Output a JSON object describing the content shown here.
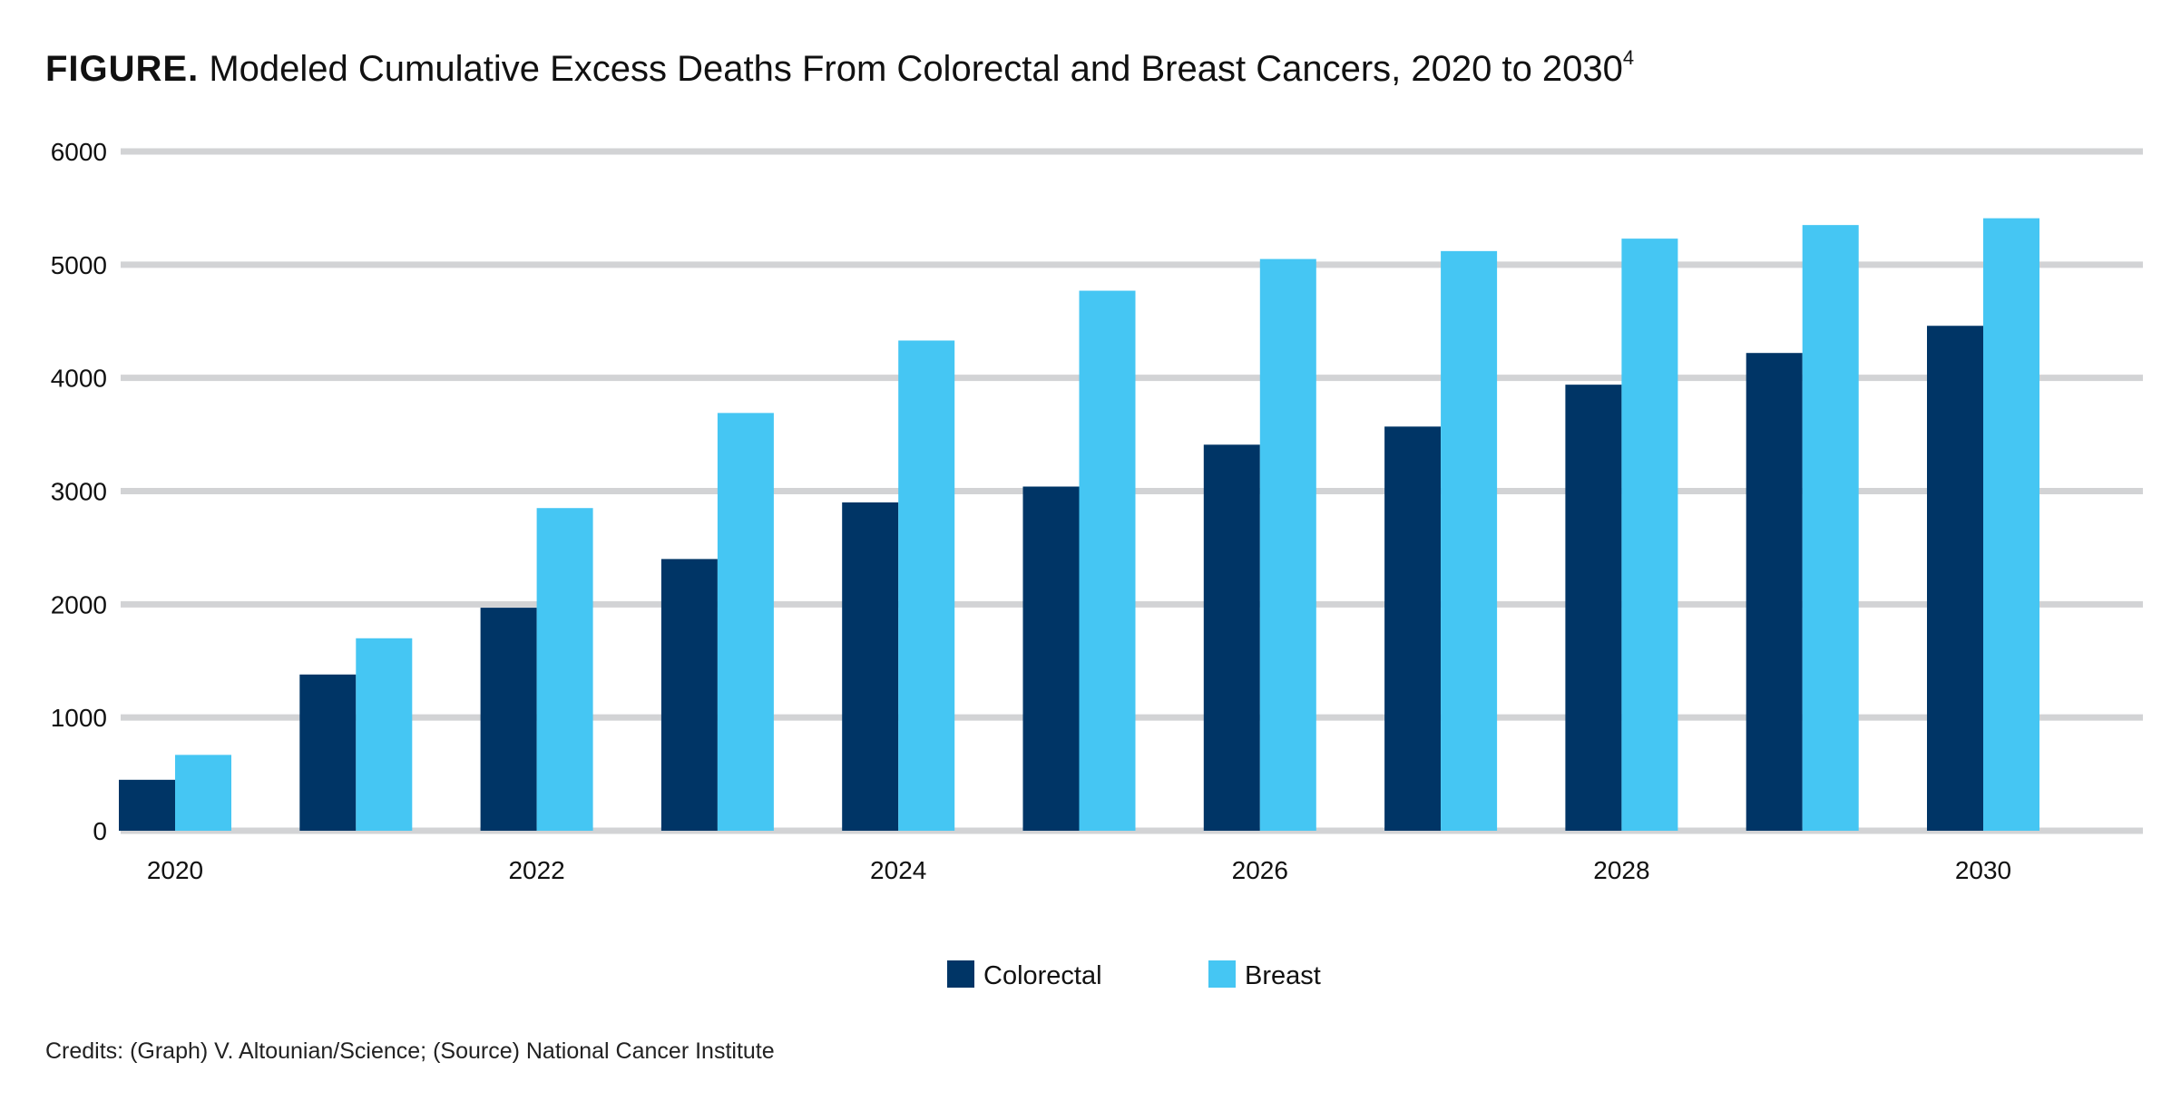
{
  "figure": {
    "title_lead": "FIGURE.",
    "title_text": "Modeled Cumulative Excess Deaths From Colorectal and Breast Cancers, 2020 to 2030",
    "title_sup": "4",
    "credits": "Credits: (Graph) V. Altounian/Science; (Source) National Cancer Institute"
  },
  "colors": {
    "colorectal": "#003566",
    "breast": "#45C6F3",
    "grid": "#D2D3D5"
  },
  "chart_data": {
    "type": "bar",
    "title": "Modeled Cumulative Excess Deaths From Colorectal and Breast Cancers, 2020 to 2030",
    "xlabel": "",
    "ylabel": "",
    "categories": [
      "2020",
      "2021",
      "2022",
      "2023",
      "2024",
      "2025",
      "2026",
      "2027",
      "2028",
      "2029",
      "2030"
    ],
    "x_tick_labels": [
      "2020",
      "",
      "2022",
      "",
      "2024",
      "",
      "2026",
      "",
      "2028",
      "",
      "2030"
    ],
    "series": [
      {
        "name": "Colorectal",
        "values": [
          450,
          1380,
          1970,
          2400,
          2900,
          3040,
          3410,
          3570,
          3940,
          4220,
          4460
        ]
      },
      {
        "name": "Breast",
        "values": [
          670,
          1700,
          2850,
          3690,
          4330,
          4770,
          5050,
          5120,
          5230,
          5350,
          5410
        ]
      }
    ],
    "ylim": [
      0,
      6000
    ],
    "yticks": [
      0,
      1000,
      2000,
      3000,
      4000,
      5000,
      6000
    ],
    "grid": true,
    "legend_position": "bottom-center"
  }
}
